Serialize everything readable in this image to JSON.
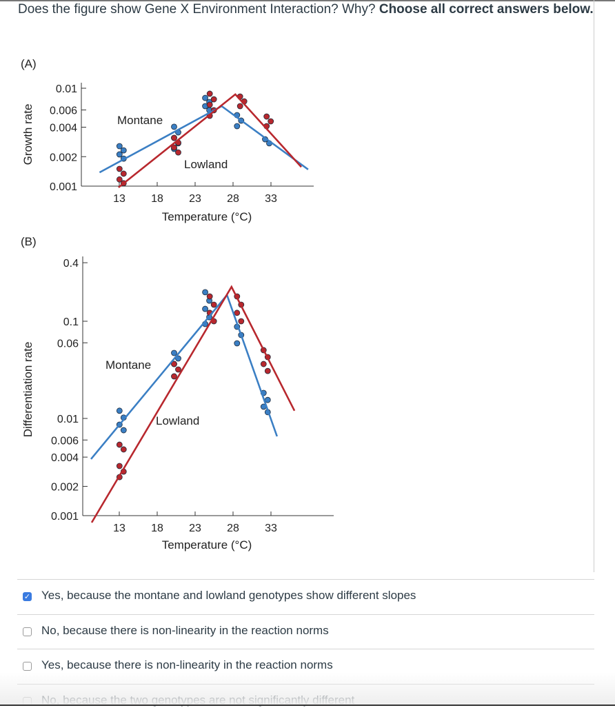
{
  "question": {
    "text": "Does the figure show Gene X Environment Interaction? Why?",
    "emphasis": "Choose all correct answers below."
  },
  "colors": {
    "montane": "#3b7fc4",
    "lowland": "#b8282e",
    "checkbox_checked": "#3a7be0"
  },
  "chart_data": [
    {
      "panel": "(A)",
      "type": "scatter",
      "ylabel": "Growth rate",
      "xlabel": "Temperature (°C)",
      "yscale": "log",
      "xticks": [
        "13",
        "18",
        "23",
        "28",
        "33"
      ],
      "yticks": [
        "0.01",
        "0.006",
        "0.004",
        "0.002",
        "0.001"
      ],
      "ylim": [
        0.001,
        0.01
      ],
      "series": [
        {
          "name": "Montane",
          "color": "#3b7fc4",
          "line": [
            [
              10.4,
              0.00138
            ],
            [
              26.5,
              0.00656
            ],
            [
              37.9,
              0.00148
            ]
          ],
          "points": [
            {
              "x": 13.3,
              "y": [
                0.00256,
                0.00232,
                0.00211,
                0.00191
              ]
            },
            {
              "x": 20.5,
              "y": [
                0.00404,
                0.00354,
                0.00311,
                0.00274,
                0.0024
              ]
            },
            {
              "x": 24.6,
              "y": [
                0.00796,
                0.00723,
                0.00656,
                0.00596
              ]
            },
            {
              "x": 28.8,
              "y": [
                0.00531,
                0.00467,
                0.0041
              ]
            },
            {
              "x": 32.5,
              "y": [
                0.00301,
                0.00274
              ]
            }
          ]
        },
        {
          "name": "Lowland",
          "color": "#b8282e",
          "line": [
            [
              12.9,
              0.00097
            ],
            [
              28.3,
              0.00865
            ],
            [
              37,
              0.00157
            ]
          ],
          "points": [
            {
              "x": 13.3,
              "y": [
                0.0015,
                0.00134,
                0.00117,
                0.00107
              ]
            },
            {
              "x": 20.5,
              "y": [
                0.00311,
                0.00278,
                0.00248,
                0.00221
              ]
            },
            {
              "x": 25.2,
              "y": [
                0.00879,
                0.00771,
                0.00678,
                0.00596,
                0.00523
              ]
            },
            {
              "x": 29.2,
              "y": [
                0.00823,
                0.00735,
                0.00656
              ]
            },
            {
              "x": 32.7,
              "y": [
                0.00514,
                0.00459,
                0.0041
              ]
            }
          ]
        }
      ]
    },
    {
      "panel": "(B)",
      "type": "scatter",
      "ylabel": "Differentiation rate",
      "xlabel": "Temperature (°C)",
      "yscale": "log",
      "xticks": [
        "13",
        "18",
        "23",
        "28",
        "33"
      ],
      "yticks": [
        "0.4",
        "0.1",
        "0.06",
        "0.01",
        "0.006",
        "0.004",
        "0.002",
        "0.001"
      ],
      "ylim": [
        0.001,
        0.4
      ],
      "series": [
        {
          "name": "Montane",
          "color": "#3b7fc4",
          "line": [
            [
              9.27,
              0.00382
            ],
            [
              27.2,
              0.186
            ],
            [
              33.8,
              0.00654
            ]
          ],
          "points": [
            {
              "x": 13.3,
              "y": [
                0.012,
                0.0102,
                0.00863,
                0.00757
              ]
            },
            {
              "x": 20.5,
              "y": [
                0.0472,
                0.0414,
                0.0363
              ]
            },
            {
              "x": 24.6,
              "y": [
                0.199,
                0.163,
                0.134,
                0.11,
                0.0937
              ]
            },
            {
              "x": 28.8,
              "y": [
                0.0877,
                0.0721,
                0.0593
              ]
            },
            {
              "x": 32.3,
              "y": [
                0.0183,
                0.0155,
                0.0132,
                0.0116
              ]
            }
          ]
        },
        {
          "name": "Lowland",
          "color": "#b8282e",
          "line": [
            [
              9.36,
              0.00085
            ],
            [
              27.8,
              0.226
            ],
            [
              36.1,
              0.012
            ]
          ],
          "points": [
            {
              "x": 13.3,
              "y": [
                0.00537,
                0.0048,
                0.00324,
                0.00284,
                0.00249
              ]
            },
            {
              "x": 20.5,
              "y": [
                0.0363,
                0.0319,
                0.0271
              ]
            },
            {
              "x": 25.2,
              "y": [
                0.18,
                0.148,
                0.122,
                0.1
              ]
            },
            {
              "x": 28.8,
              "y": [
                0.18,
                0.148,
                0.122,
                0.1
              ]
            },
            {
              "x": 32.3,
              "y": [
                0.0504,
                0.0428,
                0.0363,
                0.0308
              ]
            }
          ]
        }
      ]
    }
  ],
  "options": [
    {
      "label": "Yes, because the montane and lowland genotypes show different slopes",
      "checked": true
    },
    {
      "label": "No, because there is non-linearity in the reaction norms",
      "checked": false
    },
    {
      "label": "Yes, because there is non-linearity in the reaction norms",
      "checked": false
    },
    {
      "label": "No, because the two genotypes are not significantly different",
      "checked": false
    }
  ]
}
